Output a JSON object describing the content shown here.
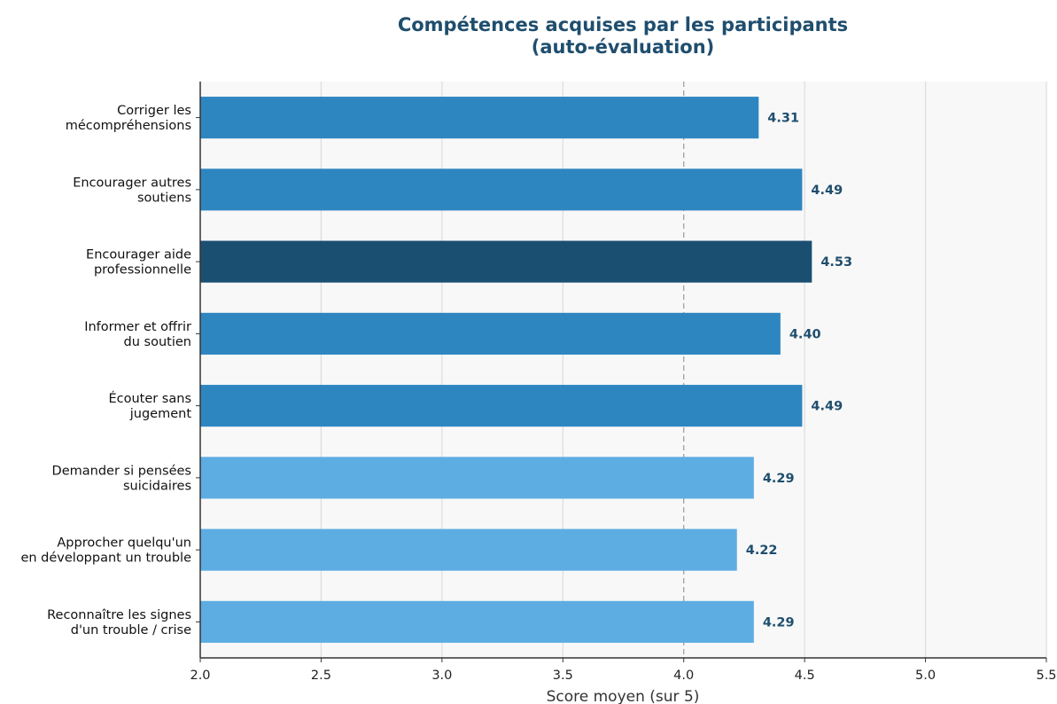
{
  "chart_data": {
    "type": "bar",
    "orientation": "horizontal",
    "title": [
      "Compétences acquises par les participants",
      "(auto-évaluation)"
    ],
    "xlabel": "Score moyen (sur 5)",
    "ylabel": "",
    "xlim": [
      2.0,
      5.5
    ],
    "xticks": [
      "2.0",
      "2.5",
      "3.0",
      "3.5",
      "4.0",
      "4.5",
      "5.0",
      "5.5"
    ],
    "reference_line": 4.0,
    "grid": "vertical",
    "categories": [
      [
        "Corriger les",
        "mécompréhensions"
      ],
      [
        "Encourager autres",
        "soutiens"
      ],
      [
        "Encourager aide",
        "professionnelle"
      ],
      [
        "Informer et offrir",
        "du soutien"
      ],
      [
        "Écouter sans",
        "jugement"
      ],
      [
        "Demander si pensées",
        "suicidaires"
      ],
      [
        "Approcher quelqu'un",
        "en développant un trouble"
      ],
      [
        "Reconnaître les signes",
        "d'un trouble / crise"
      ]
    ],
    "values": [
      4.31,
      4.49,
      4.53,
      4.4,
      4.49,
      4.29,
      4.22,
      4.29
    ],
    "value_labels": [
      "4.31",
      "4.49",
      "4.53",
      "4.40",
      "4.49",
      "4.29",
      "4.22",
      "4.29"
    ],
    "bar_colors": [
      "#2e86c1",
      "#2e86c1",
      "#1b4f72",
      "#2e86c1",
      "#2e86c1",
      "#5dade2",
      "#5dade2",
      "#5dade2"
    ]
  },
  "colors": {
    "plot_background": "#f8f8f8",
    "grid": "#dddddd",
    "reference_line": "#999999",
    "title": "#1f4e6e",
    "value_label": "#1f4e6e"
  }
}
